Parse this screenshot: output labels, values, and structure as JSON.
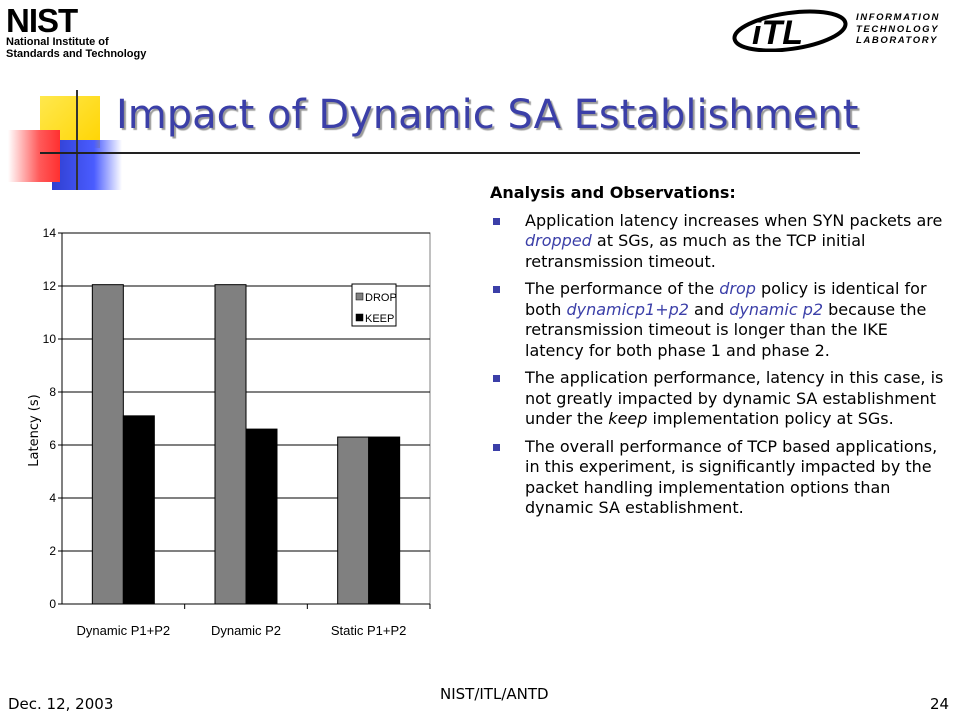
{
  "header": {
    "nist_logo": {
      "mark": "NIST",
      "line1": "National Institute of",
      "line2": "Standards and Technology"
    },
    "itl_logo": {
      "mark": "iTL",
      "line1": "INFORMATION",
      "line2": "TECHNOLOGY",
      "line3": "LABORATORY"
    }
  },
  "title": "Impact of Dynamic SA Establishment",
  "colors": {
    "title": "#3b3fa8",
    "highlight": "#3b3fa8",
    "drop_bar": "#808080",
    "keep_bar": "#000000"
  },
  "analysis": {
    "heading": "Analysis and Observations:",
    "bullets": [
      [
        {
          "t": "Application latency increases when SYN packets are "
        },
        {
          "t": "dropped",
          "s": "hl"
        },
        {
          "t": " at SGs, as much as the TCP initial retransmission timeout."
        }
      ],
      [
        {
          "t": "The performance of the "
        },
        {
          "t": "drop",
          "s": "hl"
        },
        {
          "t": " policy is identical for both "
        },
        {
          "t": "dynamicp1+p2",
          "s": "hl"
        },
        {
          "t": " and "
        },
        {
          "t": "dynamic p2",
          "s": "hl"
        },
        {
          "t": " because the retransmission timeout is longer than the IKE latency for both phase 1 and phase 2."
        }
      ],
      [
        {
          "t": "The application performance, latency in this case, is not greatly impacted by dynamic SA establishment under the "
        },
        {
          "t": "keep",
          "s": "em"
        },
        {
          "t": " implementation policy at SGs."
        }
      ],
      [
        {
          "t": "The overall performance of TCP based applications, in this experiment, is significantly impacted by the packet handling implementation options than dynamic SA establishment."
        }
      ]
    ]
  },
  "chart_data": {
    "type": "bar",
    "title": "",
    "xlabel": "",
    "ylabel": "Latency (s)",
    "ylim": [
      0,
      14
    ],
    "yticks": [
      0,
      2,
      4,
      6,
      8,
      10,
      12,
      14
    ],
    "categories": [
      "Dynamic P1+P2",
      "Dynamic P2",
      "Static P1+P2"
    ],
    "series": [
      {
        "name": "DROP",
        "values": [
          12.05,
          12.05,
          6.3
        ],
        "color": "#808080"
      },
      {
        "name": "KEEP",
        "values": [
          7.1,
          6.6,
          6.3
        ],
        "color": "#000000"
      }
    ],
    "legend": "right",
    "grid": true
  },
  "footer": {
    "date": "Dec. 12, 2003",
    "center": "NIST/ITL/ANTD",
    "page": "24"
  }
}
